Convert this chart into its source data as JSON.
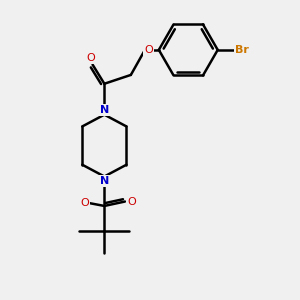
{
  "bg_color": "#f0f0f0",
  "bond_color": "#000000",
  "N_color": "#0000cc",
  "O_color": "#cc0000",
  "Br_color": "#cc7700",
  "bond_width": 1.8,
  "fig_size": [
    3.0,
    3.0
  ],
  "dpi": 100,
  "xlim": [
    0,
    10
  ],
  "ylim": [
    0,
    10
  ]
}
